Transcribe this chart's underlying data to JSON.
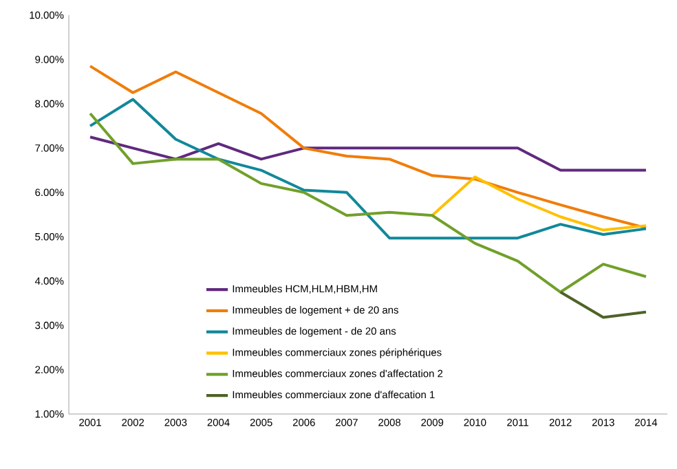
{
  "chart_data": {
    "type": "line",
    "categories": [
      "2001",
      "2002",
      "2003",
      "2004",
      "2005",
      "2006",
      "2007",
      "2008",
      "2009",
      "2010",
      "2011",
      "2012",
      "2013",
      "2014"
    ],
    "series": [
      {
        "name": "Immeubles HCM,HLM,HBM,HM",
        "color": "#60297f",
        "values": [
          7.25,
          7.0,
          6.75,
          7.1,
          6.75,
          7.0,
          7.0,
          7.0,
          7.0,
          7.0,
          7.0,
          6.5,
          6.5,
          6.5
        ]
      },
      {
        "name": "Immeubles de logement + de 20 ans",
        "color": "#f07d0a",
        "values": [
          8.85,
          8.25,
          8.72,
          8.25,
          7.78,
          7.0,
          6.82,
          6.75,
          6.38,
          6.3,
          6.0,
          5.72,
          5.45,
          5.2
        ]
      },
      {
        "name": "Immeubles de logement - de 20 ans",
        "color": "#11889a",
        "values": [
          7.5,
          8.1,
          7.2,
          6.75,
          6.5,
          6.05,
          6.0,
          4.97,
          4.97,
          4.97,
          4.97,
          5.28,
          5.05,
          5.18
        ]
      },
      {
        "name": "Immeubles commerciaux zones périphériques",
        "color": "#ffc000",
        "values": [
          null,
          null,
          null,
          null,
          null,
          null,
          null,
          null,
          5.48,
          6.35,
          5.85,
          5.45,
          5.15,
          5.25
        ]
      },
      {
        "name": "Immeubles commerciaux zones d'affectation 2",
        "color": "#70a02a",
        "values": [
          7.78,
          6.65,
          6.75,
          6.75,
          6.2,
          6.0,
          5.48,
          5.55,
          5.48,
          4.85,
          4.45,
          3.75,
          4.38,
          4.1
        ]
      },
      {
        "name": "Immeubles commerciaux zone d'affecation 1",
        "color": "#4f6228",
        "values": [
          null,
          null,
          null,
          null,
          null,
          null,
          null,
          null,
          null,
          null,
          null,
          3.75,
          3.18,
          3.3
        ]
      }
    ],
    "ylim": [
      1,
      10
    ],
    "yticks": [
      {
        "value": 1,
        "label": "1.00%"
      },
      {
        "value": 2,
        "label": "2.00%"
      },
      {
        "value": 3,
        "label": "3.00%"
      },
      {
        "value": 4,
        "label": "4.00%"
      },
      {
        "value": 5,
        "label": "5.00%"
      },
      {
        "value": 6,
        "label": "6.00%"
      },
      {
        "value": 7,
        "label": "7.00%"
      },
      {
        "value": 8,
        "label": "8.00%"
      },
      {
        "value": 9,
        "label": "9.00%"
      },
      {
        "value": 10,
        "label": "10.00%"
      }
    ],
    "grid": false,
    "legend": "bottom left",
    "marker": "none",
    "line_style": "solid"
  }
}
